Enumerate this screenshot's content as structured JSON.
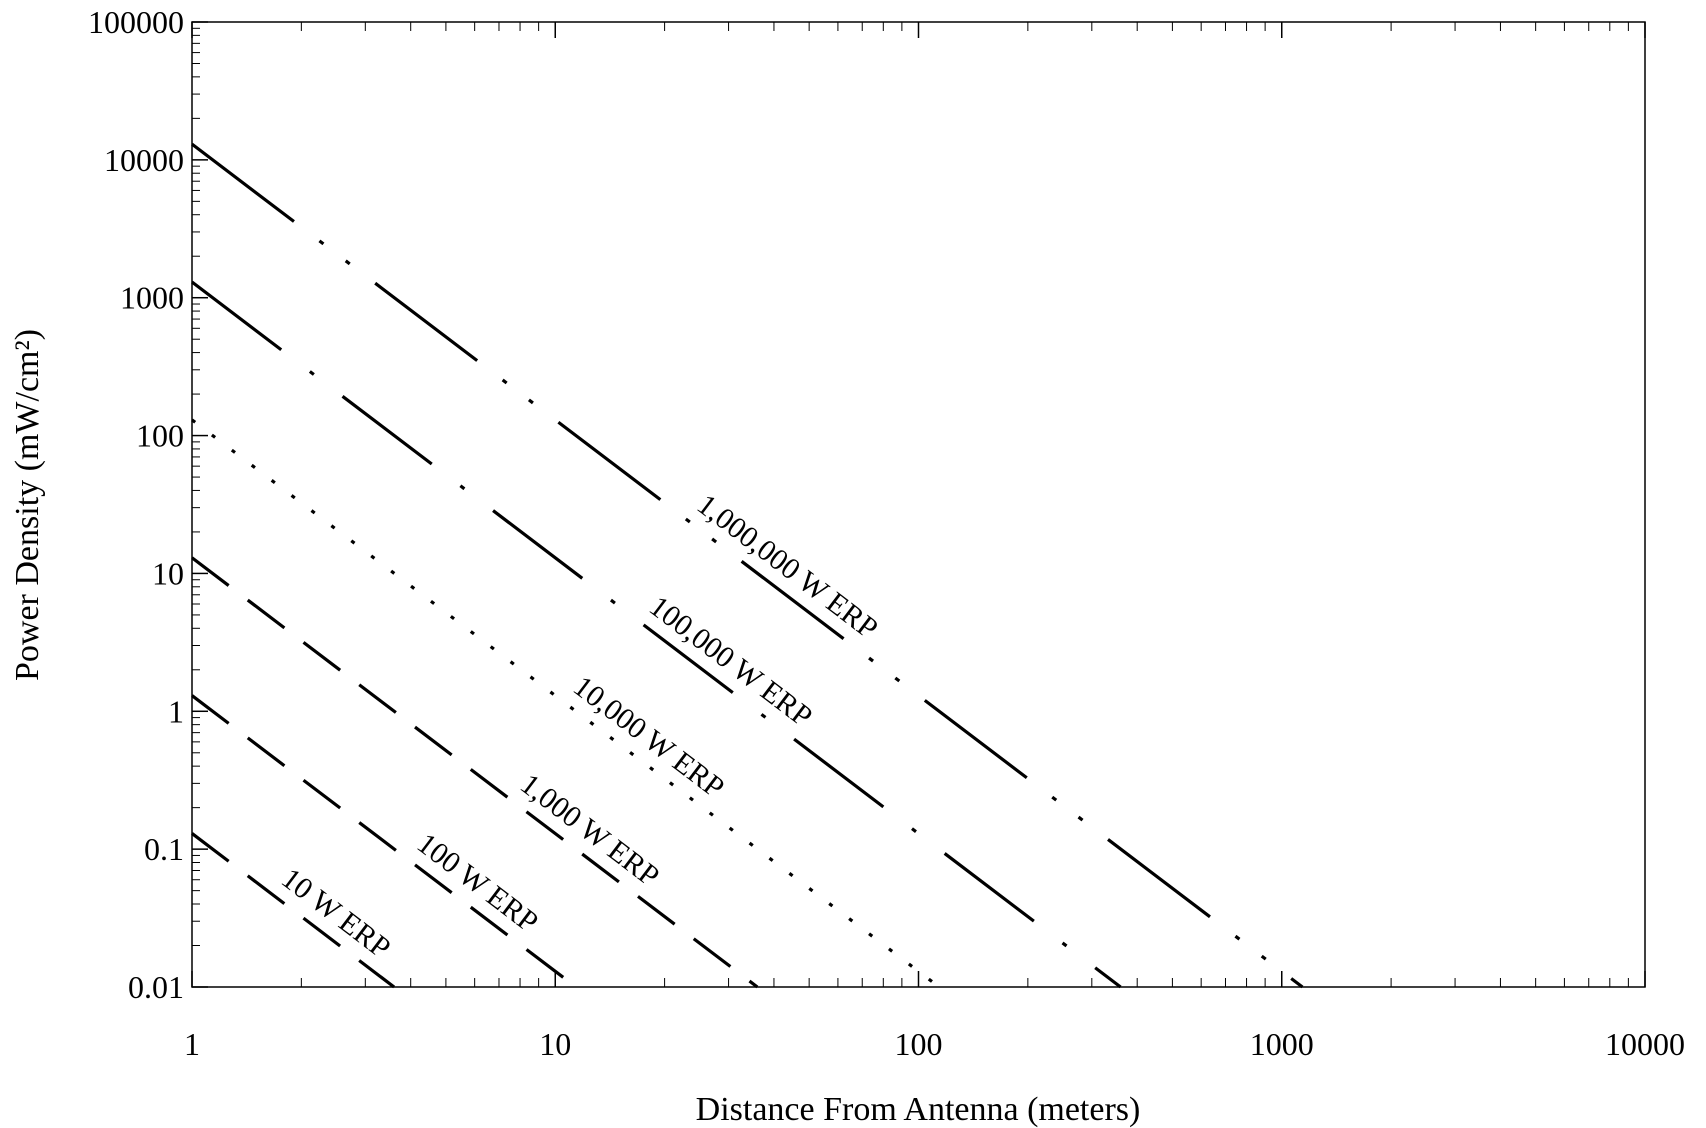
{
  "chart_data": {
    "type": "line",
    "xlabel": "Distance From Antenna (meters)",
    "ylabel": "Power Density (mW/cm²)",
    "x_scale": "log",
    "y_scale": "log",
    "xlim": [
      1,
      10000
    ],
    "ylim": [
      0.01,
      100000
    ],
    "x_ticks": [
      "1",
      "10",
      "100",
      "1000",
      "10000"
    ],
    "y_ticks": [
      "0.01",
      "0.1",
      "1",
      "10",
      "100",
      "1000",
      "10000",
      "100000"
    ],
    "grid": false,
    "legend": "none",
    "line_color": "#000000",
    "series": [
      {
        "name": "10 W ERP",
        "x": [
          1,
          3.6
        ],
        "y": [
          0.13,
          0.01
        ],
        "style": "long-dash"
      },
      {
        "name": "100 W ERP",
        "x": [
          1,
          11.4
        ],
        "y": [
          1.3,
          0.01
        ],
        "style": "long-dash"
      },
      {
        "name": "1,000 W ERP",
        "x": [
          1,
          36
        ],
        "y": [
          13,
          0.01
        ],
        "style": "long-dash"
      },
      {
        "name": "10,000 W ERP",
        "x": [
          1,
          114
        ],
        "y": [
          130,
          0.01
        ],
        "style": "dotted"
      },
      {
        "name": "100,000 W ERP",
        "x": [
          1,
          360
        ],
        "y": [
          1300,
          0.01
        ],
        "style": "dash-dot"
      },
      {
        "name": "1,000,000 W ERP",
        "x": [
          1,
          1140
        ],
        "y": [
          13000,
          0.01
        ],
        "style": "dash-dot-dot"
      }
    ]
  }
}
